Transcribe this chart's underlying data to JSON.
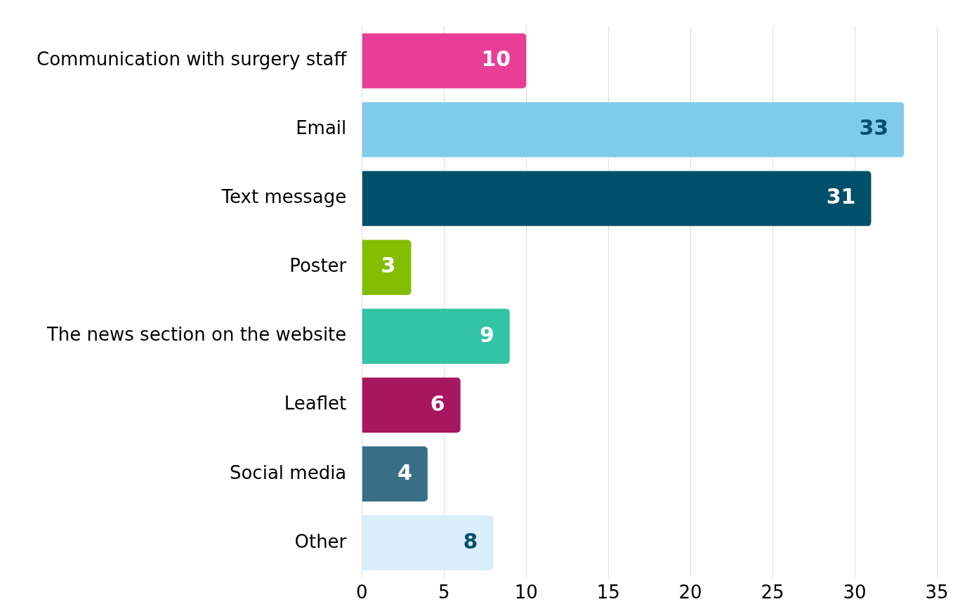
{
  "chart_data": {
    "type": "bar",
    "orientation": "horizontal",
    "categories": [
      "Communication with surgery staff",
      "Email",
      "Text message",
      "Poster",
      "The news section on the website",
      "Leaflet",
      "Social media",
      "Other"
    ],
    "values": [
      10,
      33,
      31,
      3,
      9,
      6,
      4,
      8
    ],
    "colors": [
      "#e83e96",
      "#80cbea",
      "#00506b",
      "#84bd00",
      "#33c3a5",
      "#a8165f",
      "#386f87",
      "#d9eef9"
    ],
    "xlim": [
      0,
      35
    ],
    "xticks": [
      0,
      5,
      10,
      15,
      20,
      25,
      30,
      35
    ],
    "grid": "x",
    "data_labels": true,
    "legend": false
  }
}
